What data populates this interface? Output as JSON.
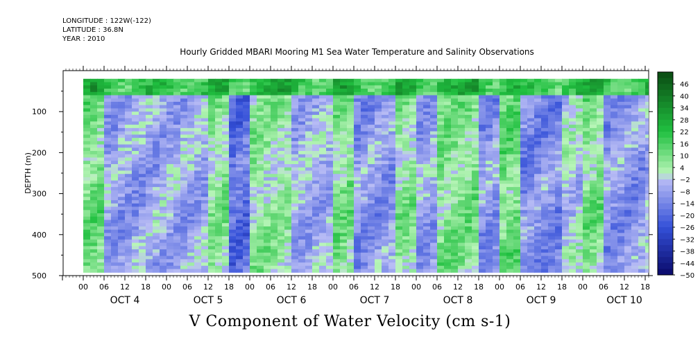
{
  "header": {
    "longitude": "LONGITUDE : 122W(-122)",
    "latitude": "LATITUDE : 36.8N",
    "year": "YEAR : 2010"
  },
  "title": "Hourly Gridded MBARI Mooring M1 Sea Water Temperature and Salinity Observations",
  "bottom_title": "V Component of Water Velocity (cm s-1)",
  "colors": {
    "positive_dark": "#0a4a12",
    "positive_light": "#b8f5b8",
    "negative_light": "#b8bcf5",
    "negative_dark": "#0a0a6a",
    "background": "#ffffff"
  },
  "chart_data": {
    "type": "heatmap",
    "variable": "V Component of Water Velocity (cm s-1)",
    "ylabel": "DEPTH (m)",
    "ylim": [
      500,
      0
    ],
    "y_ticks": [
      100,
      200,
      300,
      400,
      500
    ],
    "x_hour_ticks": [
      "00",
      "06",
      "12",
      "18",
      "00",
      "06",
      "12",
      "18",
      "00",
      "06",
      "12",
      "18",
      "00",
      "06",
      "12",
      "18",
      "00",
      "06",
      "12",
      "18",
      "00",
      "06",
      "12",
      "18",
      "00",
      "06",
      "12",
      "18"
    ],
    "x_day_labels": [
      "OCT  4",
      "OCT  5",
      "OCT  6",
      "OCT  7",
      "OCT  8",
      "OCT  9",
      "OCT 10"
    ],
    "data_depth_range": [
      20,
      485
    ],
    "colorbar": {
      "labels": [
        "46",
        "40",
        "34",
        "28",
        "22",
        "16",
        "10",
        "4",
        "-2",
        "-8",
        "-14",
        "-20",
        "-26",
        "-32",
        "-38",
        "-44",
        "-50"
      ],
      "range": [
        -50,
        52
      ],
      "step": 3
    },
    "mean_profile_by_period": [
      {
        "period": "OCT 4 00-06",
        "value": 10
      },
      {
        "period": "OCT 4 06-18",
        "value": -8
      },
      {
        "period": "OCT 5 00-12",
        "value": -6
      },
      {
        "period": "OCT 5 12-18",
        "value": 6
      },
      {
        "period": "OCT 5 18-24",
        "value": -18
      },
      {
        "period": "OCT 6 00-12",
        "value": 5
      },
      {
        "period": "OCT 6 12-24",
        "value": -6
      },
      {
        "period": "OCT 7 00-06",
        "value": 8
      },
      {
        "period": "OCT 7 06-18",
        "value": -10
      },
      {
        "period": "OCT 7 18-24",
        "value": 6
      },
      {
        "period": "OCT 8 00-06",
        "value": -8
      },
      {
        "period": "OCT 8 06-18",
        "value": 8
      },
      {
        "period": "OCT 8 18-24",
        "value": -10
      },
      {
        "period": "OCT 9 00-06",
        "value": 10
      },
      {
        "period": "OCT 9 06-18",
        "value": -12
      },
      {
        "period": "OCT 10 00-06",
        "value": 8
      },
      {
        "period": "OCT 10 06-18",
        "value": -10
      }
    ]
  }
}
